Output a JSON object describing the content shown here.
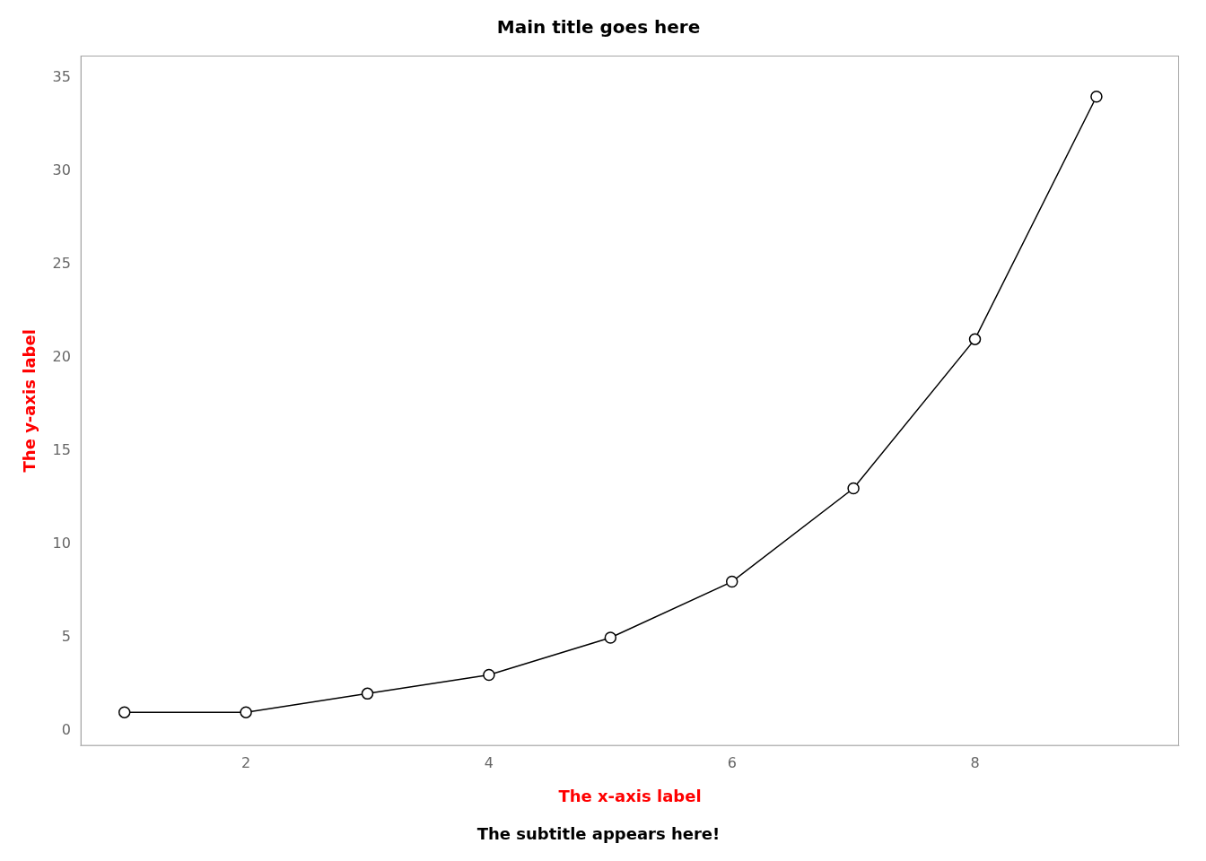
{
  "chart_data": {
    "type": "line",
    "title": "Main title goes here",
    "subtitle": "The subtitle appears here!",
    "xlabel": "The x-axis label",
    "ylabel": "The y-axis label",
    "x": [
      1,
      2,
      3,
      4,
      5,
      6,
      7,
      8,
      9
    ],
    "values": [
      1,
      1,
      2,
      3,
      5,
      8,
      13,
      21,
      34
    ],
    "color": "#000000",
    "marker": "circle",
    "line_style": "solid",
    "xlim": [
      0.64,
      9.68
    ],
    "ylim": [
      -0.8,
      36.2
    ],
    "xticks": [
      2,
      4,
      6,
      8
    ],
    "yticks": [
      0,
      5,
      10,
      15,
      20,
      25,
      30,
      35
    ],
    "grid": false
  }
}
